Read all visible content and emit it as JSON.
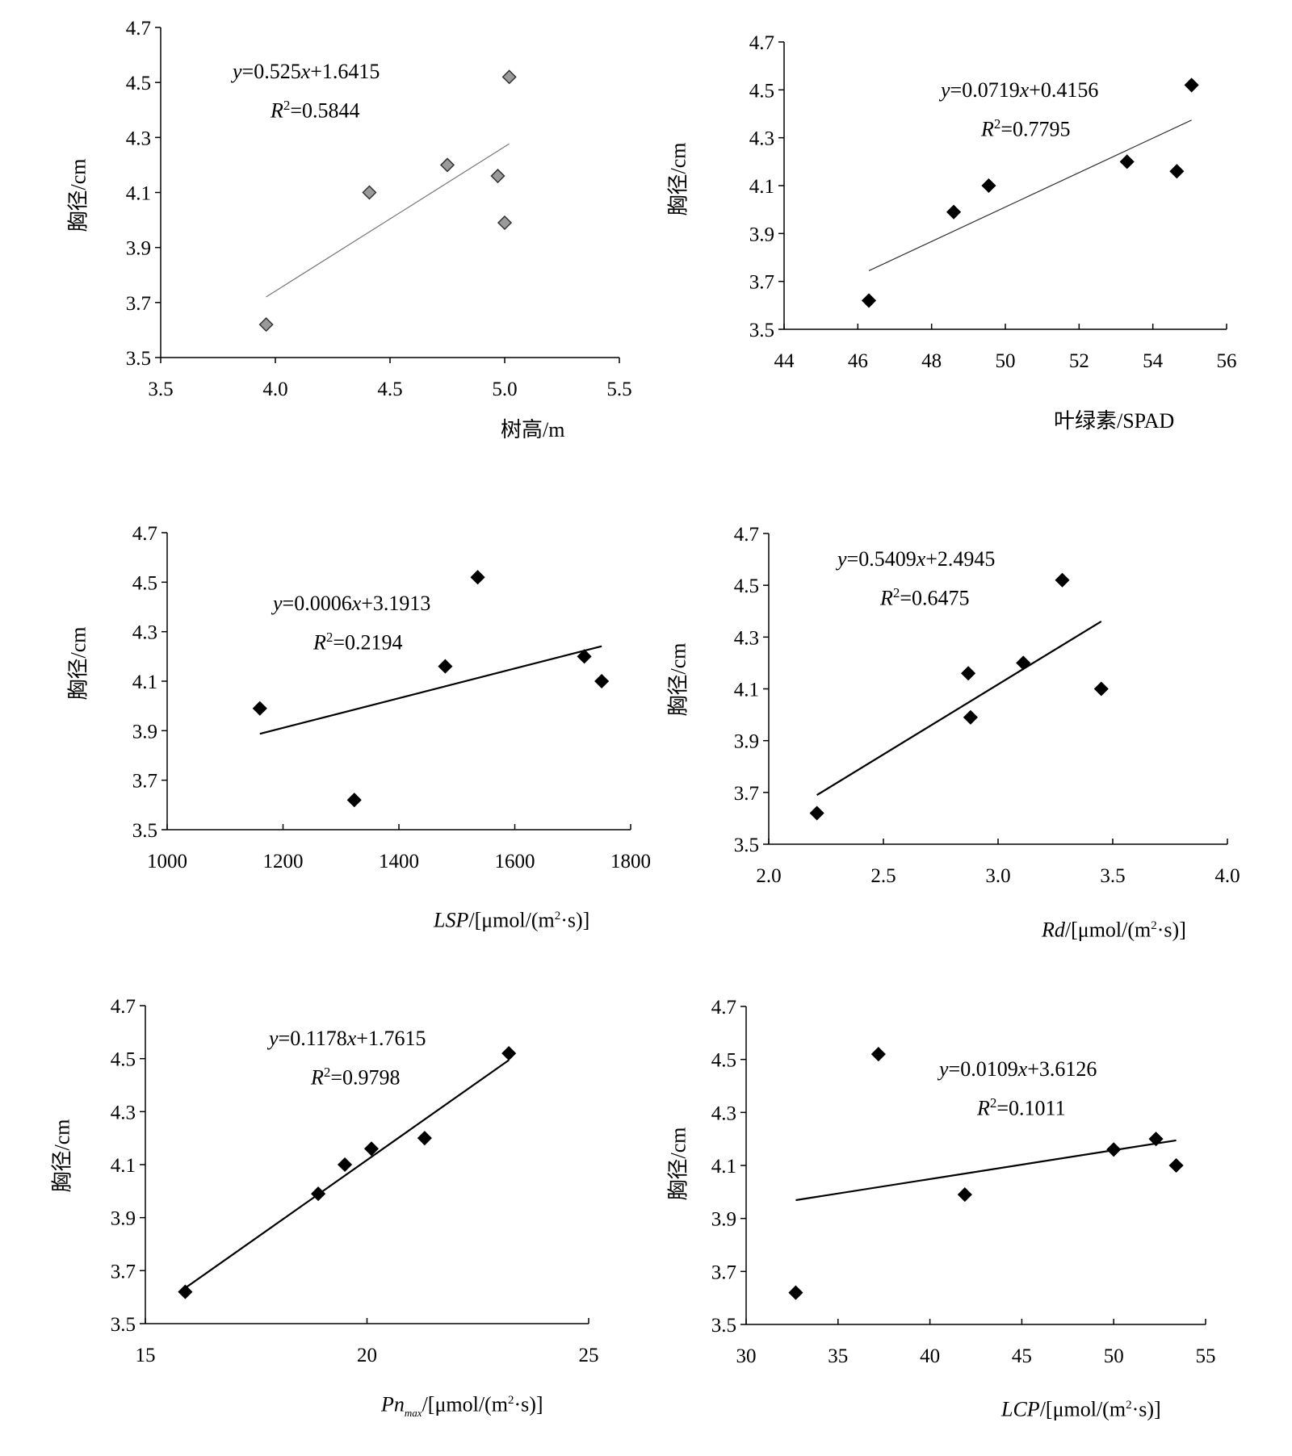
{
  "chart_data": [
    {
      "type": "scatter",
      "xlabel": "树高/m",
      "ylabel": "胸径/cm",
      "xlim": [
        3.5,
        5.5
      ],
      "ylim": [
        3.5,
        4.7
      ],
      "xticks": [
        "3.5",
        "4.0",
        "4.5",
        "5.0",
        "5.5"
      ],
      "yticks": [
        "3.5",
        "3.7",
        "3.9",
        "4.1",
        "4.3",
        "4.5",
        "4.7"
      ],
      "points": [
        [
          3.96,
          3.62
        ],
        [
          4.41,
          4.1
        ],
        [
          4.75,
          4.2
        ],
        [
          4.97,
          4.16
        ],
        [
          5.0,
          3.99
        ],
        [
          5.02,
          4.52
        ]
      ],
      "trendline": {
        "slope": 0.525,
        "intercept": 1.6415,
        "x_range": [
          3.96,
          5.02
        ]
      },
      "equation": "y=0.525x+1.6415",
      "r2": "R2=0.5844",
      "eq_parts": {
        "y": "y",
        "mid": "=0.525",
        "x": "x",
        "tail": "+1.6415",
        "R": "R",
        "two": "2",
        "r2val": "=0.5844"
      },
      "marker": "diamond-gray"
    },
    {
      "type": "scatter",
      "xlabel": "叶绿素/SPAD",
      "ylabel": "胸径/cm",
      "xlim": [
        44,
        56
      ],
      "ylim": [
        3.5,
        4.7
      ],
      "xticks": [
        "44",
        "46",
        "48",
        "50",
        "52",
        "54",
        "56"
      ],
      "yticks": [
        "3.5",
        "3.7",
        "3.9",
        "4.1",
        "4.3",
        "4.5",
        "4.7"
      ],
      "points": [
        [
          46.3,
          3.62
        ],
        [
          48.6,
          3.99
        ],
        [
          49.55,
          4.1
        ],
        [
          53.3,
          4.2
        ],
        [
          54.65,
          4.16
        ],
        [
          55.05,
          4.52
        ]
      ],
      "trendline": {
        "slope": 0.0719,
        "intercept": 0.4156,
        "x_range": [
          46.3,
          55.05
        ]
      },
      "equation": "y=0.0719x+0.4156",
      "r2": "R2=0.7795",
      "eq_parts": {
        "y": "y",
        "mid": "=0.0719",
        "x": "x",
        "tail": "+0.4156",
        "R": "R",
        "two": "2",
        "r2val": "=0.7795"
      },
      "marker": "diamond-black"
    },
    {
      "type": "scatter",
      "xlabel": "LSP/[μmol/(m²·s)]",
      "ylabel": "胸径/cm",
      "xlim": [
        1000,
        1800
      ],
      "ylim": [
        3.5,
        4.7
      ],
      "xticks": [
        "1000",
        "1200",
        "1400",
        "1600",
        "1800"
      ],
      "yticks": [
        "3.5",
        "3.7",
        "3.9",
        "4.1",
        "4.3",
        "4.5",
        "4.7"
      ],
      "points": [
        [
          1160,
          3.99
        ],
        [
          1323,
          3.62
        ],
        [
          1480,
          4.16
        ],
        [
          1536,
          4.52
        ],
        [
          1720,
          4.2
        ],
        [
          1750,
          4.1
        ]
      ],
      "trendline": {
        "slope": 0.0006,
        "intercept": 3.1913,
        "x_range": [
          1160,
          1750
        ]
      },
      "equation": "y=0.0006x+3.1913",
      "r2": "R2=0.2194",
      "eq_parts": {
        "y": "y",
        "mid": "=0.0006",
        "x": "x",
        "tail": "+3.1913",
        "R": "R",
        "two": "2",
        "r2val": "=0.2194"
      },
      "xlabel_parts": {
        "it": "LSP",
        "rest": "/[μmol/(m",
        "sup": "2",
        "tail": "·s)]"
      },
      "marker": "diamond-black"
    },
    {
      "type": "scatter",
      "xlabel": "Rd/[μmol/(m²·s)]",
      "ylabel": "胸径/cm",
      "xlim": [
        2.0,
        4.0
      ],
      "ylim": [
        3.5,
        4.7
      ],
      "xticks": [
        "2.0",
        "2.5",
        "3.0",
        "3.5",
        "4.0"
      ],
      "yticks": [
        "3.5",
        "3.7",
        "3.9",
        "4.1",
        "4.3",
        "4.5",
        "4.7"
      ],
      "points": [
        [
          2.21,
          3.62
        ],
        [
          2.87,
          4.16
        ],
        [
          2.88,
          3.99
        ],
        [
          3.11,
          4.2
        ],
        [
          3.28,
          4.52
        ],
        [
          3.45,
          4.1
        ]
      ],
      "trendline": {
        "slope": 0.5409,
        "intercept": 2.4945,
        "x_range": [
          2.21,
          3.45
        ]
      },
      "equation": "y=0.5409x+2.4945",
      "r2": "R2=0.6475",
      "eq_parts": {
        "y": "y",
        "mid": "=0.5409",
        "x": "x",
        "tail": "+2.4945",
        "R": "R",
        "two": "2",
        "r2val": "=0.6475"
      },
      "xlabel_parts": {
        "it": "Rd",
        "rest": "/[μmol/(m",
        "sup": "2",
        "tail": "·s)]"
      },
      "marker": "diamond-black"
    },
    {
      "type": "scatter",
      "xlabel": "Pnmax/[μmol/(m²·s)]",
      "ylabel": "胸径/cm",
      "xlim": [
        15,
        25
      ],
      "ylim": [
        3.5,
        4.7
      ],
      "xticks": [
        "15",
        "20",
        "25"
      ],
      "yticks": [
        "3.5",
        "3.7",
        "3.9",
        "4.1",
        "4.3",
        "4.5",
        "4.7"
      ],
      "points": [
        [
          15.9,
          3.62
        ],
        [
          18.9,
          3.99
        ],
        [
          19.5,
          4.1
        ],
        [
          20.1,
          4.16
        ],
        [
          21.3,
          4.2
        ],
        [
          23.2,
          4.52
        ]
      ],
      "trendline": {
        "slope": 0.1178,
        "intercept": 1.7615,
        "x_range": [
          15.9,
          23.2
        ]
      },
      "equation": "y=0.1178x+1.7615",
      "r2": "R2=0.9798",
      "eq_parts": {
        "y": "y",
        "mid": "=0.1178",
        "x": "x",
        "tail": "+1.7615",
        "R": "R",
        "two": "2",
        "r2val": "=0.9798"
      },
      "xlabel_parts": {
        "it": "Pn",
        "sub": "max",
        "rest": "/[μmol/(m",
        "sup": "2",
        "tail": "·s)]"
      },
      "marker": "diamond-black"
    },
    {
      "type": "scatter",
      "xlabel": "LCP/[μmol/(m²·s)]",
      "ylabel": "胸径/cm",
      "xlim": [
        30,
        55
      ],
      "ylim": [
        3.5,
        4.7
      ],
      "xticks": [
        "30",
        "35",
        "40",
        "45",
        "50",
        "55"
      ],
      "yticks": [
        "3.5",
        "3.7",
        "3.9",
        "4.1",
        "4.3",
        "4.5",
        "4.7"
      ],
      "points": [
        [
          32.7,
          3.62
        ],
        [
          37.2,
          4.52
        ],
        [
          41.9,
          3.99
        ],
        [
          50.0,
          4.16
        ],
        [
          52.3,
          4.2
        ],
        [
          53.4,
          4.1
        ]
      ],
      "trendline": {
        "slope": 0.0109,
        "intercept": 3.6126,
        "x_range": [
          32.7,
          53.4
        ]
      },
      "equation": "y=0.0109x+3.6126",
      "r2": "R2=0.1011",
      "eq_parts": {
        "y": "y",
        "mid": "=0.0109",
        "x": "x",
        "tail": "+3.6126",
        "R": "R",
        "two": "2",
        "r2val": "=0.1011"
      },
      "xlabel_parts": {
        "it": "LCP",
        "rest": "/[μmol/(m",
        "sup": "2",
        "tail": "·s)]"
      },
      "marker": "diamond-black"
    }
  ]
}
